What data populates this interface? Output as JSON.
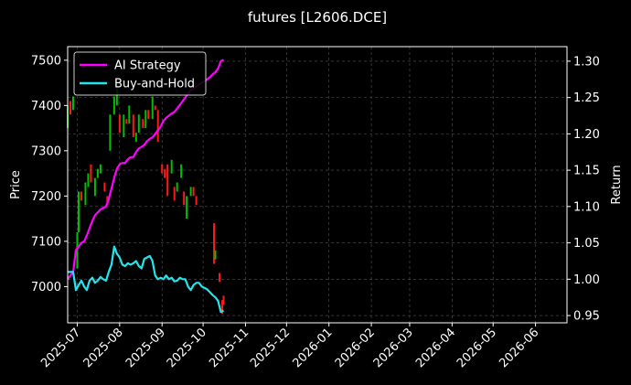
{
  "chart_data": {
    "type": "line",
    "title": "futures [L2606.DCE]",
    "ylabel_left": "Price",
    "ylabel_right": "Return",
    "x_ticks": [
      "2025-07",
      "2025-08",
      "2025-09",
      "2025-10",
      "2025-11",
      "2025-12",
      "2026-01",
      "2026-02",
      "2026-03",
      "2026-04",
      "2026-05",
      "2026-06"
    ],
    "xlim": [
      "2025-06-24",
      "2026-06-24"
    ],
    "y_left_ticks": [
      7000,
      7100,
      7200,
      7300,
      7400,
      7500
    ],
    "y_left_lim": [
      6920,
      7530
    ],
    "y_right_ticks": [
      0.95,
      1.0,
      1.05,
      1.1,
      1.15,
      1.2,
      1.25,
      1.3
    ],
    "y_right_lim": [
      0.94,
      1.32
    ],
    "grid": true,
    "legend_position": "top-left",
    "background": "#000000",
    "colors": {
      "ai": "#ff00ff",
      "bh": "#22e5ee",
      "up": "#00c000",
      "down": "#ff1a1a",
      "grid": "#555555"
    },
    "series": [
      {
        "name": "AI Strategy",
        "color": "#ff00ff",
        "x": [
          "2025-06-24",
          "2025-06-26",
          "2025-06-28",
          "2025-06-30",
          "2025-07-02",
          "2025-07-04",
          "2025-07-06",
          "2025-07-08",
          "2025-07-10",
          "2025-07-12",
          "2025-07-14",
          "2025-07-16",
          "2025-07-18",
          "2025-07-20",
          "2025-07-22",
          "2025-07-24",
          "2025-07-26",
          "2025-07-28",
          "2025-07-30",
          "2025-08-01",
          "2025-08-03",
          "2025-08-05",
          "2025-08-07",
          "2025-08-09",
          "2025-08-11",
          "2025-08-13",
          "2025-08-15",
          "2025-08-17",
          "2025-08-19",
          "2025-08-21",
          "2025-08-23",
          "2025-08-25",
          "2025-08-27",
          "2025-08-29",
          "2025-08-31",
          "2025-09-02",
          "2025-09-04",
          "2025-09-06",
          "2025-09-08",
          "2025-09-10",
          "2025-09-12",
          "2025-09-14",
          "2025-09-16",
          "2025-09-18",
          "2025-09-20",
          "2025-09-22",
          "2025-09-24",
          "2025-09-26",
          "2025-09-28",
          "2025-09-30",
          "2025-10-02",
          "2025-10-04",
          "2025-10-06",
          "2025-10-08",
          "2025-10-10",
          "2025-10-12",
          "2025-10-14",
          "2025-10-16"
        ],
        "values": [
          1.0,
          1.005,
          1.01,
          1.04,
          1.045,
          1.05,
          1.052,
          1.06,
          1.07,
          1.08,
          1.088,
          1.092,
          1.096,
          1.098,
          1.1,
          1.11,
          1.125,
          1.14,
          1.152,
          1.158,
          1.16,
          1.16,
          1.165,
          1.168,
          1.168,
          1.175,
          1.18,
          1.182,
          1.185,
          1.19,
          1.193,
          1.195,
          1.2,
          1.205,
          1.21,
          1.218,
          1.222,
          1.225,
          1.228,
          1.23,
          1.235,
          1.24,
          1.245,
          1.25,
          1.255,
          1.26,
          1.262,
          1.265,
          1.268,
          1.27,
          1.272,
          1.275,
          1.278,
          1.282,
          1.285,
          1.29,
          1.3,
          1.302
        ]
      },
      {
        "name": "Buy-and-Hold",
        "color": "#22e5ee",
        "x": [
          "2025-06-24",
          "2025-06-26",
          "2025-06-28",
          "2025-06-30",
          "2025-07-02",
          "2025-07-04",
          "2025-07-06",
          "2025-07-08",
          "2025-07-10",
          "2025-07-12",
          "2025-07-14",
          "2025-07-16",
          "2025-07-18",
          "2025-07-20",
          "2025-07-22",
          "2025-07-24",
          "2025-07-26",
          "2025-07-28",
          "2025-07-30",
          "2025-08-01",
          "2025-08-03",
          "2025-08-05",
          "2025-08-07",
          "2025-08-09",
          "2025-08-11",
          "2025-08-13",
          "2025-08-15",
          "2025-08-17",
          "2025-08-19",
          "2025-08-21",
          "2025-08-23",
          "2025-08-25",
          "2025-08-27",
          "2025-08-29",
          "2025-08-31",
          "2025-09-02",
          "2025-09-04",
          "2025-09-06",
          "2025-09-08",
          "2025-09-10",
          "2025-09-12",
          "2025-09-14",
          "2025-09-16",
          "2025-09-18",
          "2025-09-20",
          "2025-09-22",
          "2025-09-24",
          "2025-09-26",
          "2025-09-28",
          "2025-09-30",
          "2025-10-02",
          "2025-10-04",
          "2025-10-06",
          "2025-10-08",
          "2025-10-10",
          "2025-10-12",
          "2025-10-14",
          "2025-10-16"
        ],
        "values": [
          1.01,
          1.01,
          1.01,
          0.985,
          0.992,
          0.998,
          0.99,
          0.985,
          0.998,
          1.002,
          0.995,
          0.998,
          1.003,
          1.0,
          0.998,
          1.01,
          1.02,
          1.045,
          1.035,
          1.03,
          1.02,
          1.018,
          1.022,
          1.02,
          1.022,
          1.025,
          1.018,
          1.015,
          1.028,
          1.03,
          1.032,
          1.025,
          1.005,
          1.0,
          1.002,
          1.0,
          1.005,
          1.0,
          1.002,
          0.997,
          0.998,
          1.002,
          1.0,
          1.0,
          0.99,
          0.985,
          0.992,
          0.995,
          0.995,
          0.99,
          0.988,
          0.986,
          0.982,
          0.978,
          0.975,
          0.97,
          0.955,
          0.957
        ]
      }
    ],
    "candles": [
      {
        "x": "2025-06-24",
        "open": 7350,
        "close": 7400
      },
      {
        "x": "2025-06-26",
        "open": 7410,
        "close": 7380
      },
      {
        "x": "2025-06-28",
        "open": 7390,
        "close": 7420
      },
      {
        "x": "2025-07-01",
        "open": 7040,
        "close": 7120
      },
      {
        "x": "2025-07-02",
        "open": 7120,
        "close": 7210
      },
      {
        "x": "2025-07-04",
        "open": 7210,
        "close": 7190
      },
      {
        "x": "2025-07-07",
        "open": 7180,
        "close": 7230
      },
      {
        "x": "2025-07-09",
        "open": 7220,
        "close": 7250
      },
      {
        "x": "2025-07-11",
        "open": 7270,
        "close": 7230
      },
      {
        "x": "2025-07-14",
        "open": 7200,
        "close": 7240
      },
      {
        "x": "2025-07-16",
        "open": 7240,
        "close": 7260
      },
      {
        "x": "2025-07-18",
        "open": 7250,
        "close": 7270
      },
      {
        "x": "2025-07-21",
        "open": 7230,
        "close": 7210
      },
      {
        "x": "2025-07-23",
        "open": 7200,
        "close": 7180
      },
      {
        "x": "2025-07-25",
        "open": 7300,
        "close": 7380
      },
      {
        "x": "2025-07-28",
        "open": 7380,
        "close": 7420
      },
      {
        "x": "2025-07-30",
        "open": 7400,
        "close": 7450
      },
      {
        "x": "2025-08-01",
        "open": 7380,
        "close": 7340
      },
      {
        "x": "2025-08-04",
        "open": 7330,
        "close": 7380
      },
      {
        "x": "2025-08-06",
        "open": 7370,
        "close": 7360
      },
      {
        "x": "2025-08-08",
        "open": 7360,
        "close": 7400
      },
      {
        "x": "2025-08-11",
        "open": 7380,
        "close": 7330
      },
      {
        "x": "2025-08-13",
        "open": 7320,
        "close": 7340
      },
      {
        "x": "2025-08-15",
        "open": 7340,
        "close": 7380
      },
      {
        "x": "2025-08-18",
        "open": 7370,
        "close": 7350
      },
      {
        "x": "2025-08-20",
        "open": 7350,
        "close": 7390
      },
      {
        "x": "2025-08-22",
        "open": 7390,
        "close": 7370
      },
      {
        "x": "2025-08-25",
        "open": 7370,
        "close": 7420
      },
      {
        "x": "2025-08-27",
        "open": 7400,
        "close": 7390
      },
      {
        "x": "2025-08-29",
        "open": 7390,
        "close": 7320
      },
      {
        "x": "2025-09-01",
        "open": 7270,
        "close": 7250
      },
      {
        "x": "2025-09-03",
        "open": 7260,
        "close": 7240
      },
      {
        "x": "2025-09-05",
        "open": 7270,
        "close": 7200
      },
      {
        "x": "2025-09-08",
        "open": 7250,
        "close": 7280
      },
      {
        "x": "2025-09-10",
        "open": 7220,
        "close": 7190
      },
      {
        "x": "2025-09-12",
        "open": 7210,
        "close": 7230
      },
      {
        "x": "2025-09-15",
        "open": 7240,
        "close": 7270
      },
      {
        "x": "2025-09-17",
        "open": 7210,
        "close": 7180
      },
      {
        "x": "2025-09-19",
        "open": 7150,
        "close": 7200
      },
      {
        "x": "2025-09-22",
        "open": 7200,
        "close": 7220
      },
      {
        "x": "2025-09-24",
        "open": 7220,
        "close": 7200
      },
      {
        "x": "2025-09-26",
        "open": 7200,
        "close": 7180
      },
      {
        "x": "2025-10-09",
        "open": 7140,
        "close": 7050
      },
      {
        "x": "2025-10-10",
        "open": 7060,
        "close": 7080
      },
      {
        "x": "2025-10-13",
        "open": 7030,
        "close": 7010
      },
      {
        "x": "2025-10-15",
        "open": 6970,
        "close": 6940
      },
      {
        "x": "2025-10-16",
        "open": 6980,
        "close": 6960
      }
    ]
  }
}
